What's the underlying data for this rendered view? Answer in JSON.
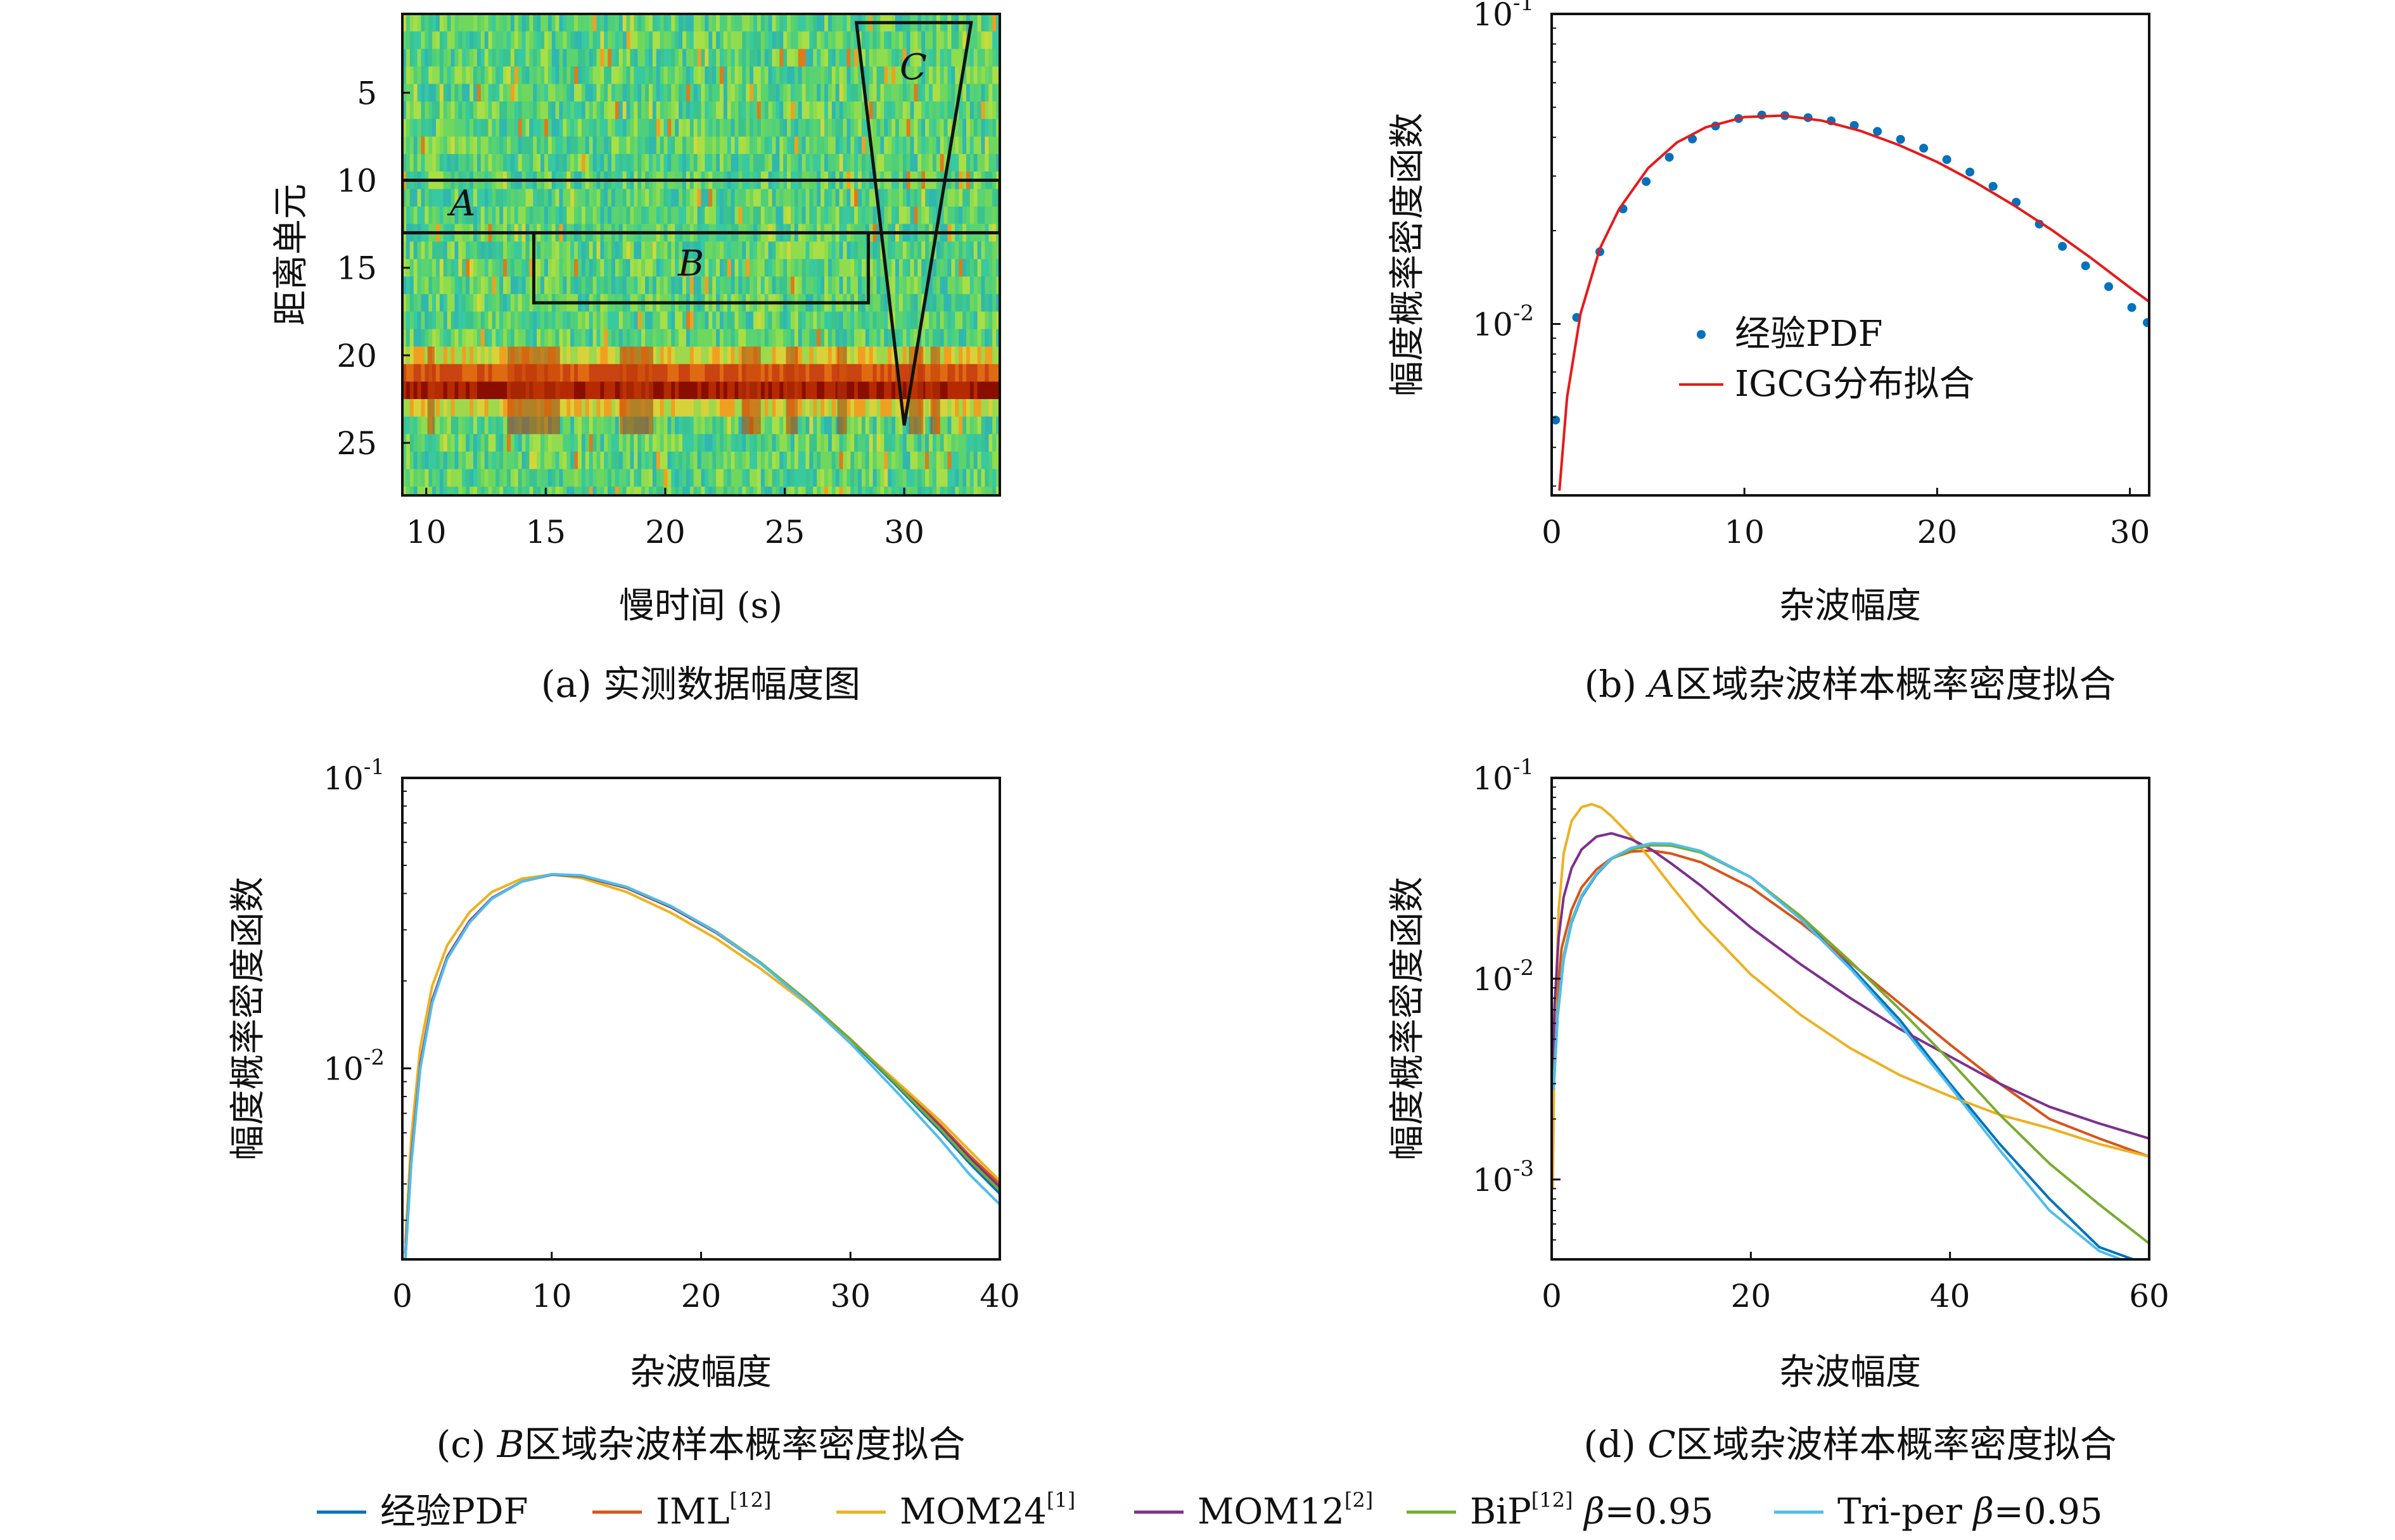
{
  "figure": {
    "captions": {
      "a": "(a) 实测数据幅度图",
      "b_prefix": "(b) ",
      "b_italic": "A",
      "b_rest": "区域杂波样本概率密度拟合",
      "c_prefix": "(c) ",
      "c_italic": "B",
      "c_rest": "区域杂波样本概率密度拟合",
      "d_prefix": "(d) ",
      "d_italic": "C",
      "d_rest": "区域杂波样本概率密度拟合"
    },
    "bottom_legend": [
      {
        "label": "经验PDF",
        "sup": "",
        "suffix": "",
        "color": "#0072BD"
      },
      {
        "label": "IML",
        "sup": "[12]",
        "suffix": "",
        "color": "#D95319"
      },
      {
        "label": "MOM24",
        "sup": "[1]",
        "suffix": "",
        "color": "#EDB120"
      },
      {
        "label": "MOM12",
        "sup": "[2]",
        "suffix": "",
        "color": "#7E2F8E"
      },
      {
        "label": "BiP",
        "sup": "[12]",
        "suffix": " β=0.95",
        "color": "#77AC30"
      },
      {
        "label": "Tri-per",
        "sup": "",
        "suffix": " β=0.95",
        "color": "#4DBEEE"
      }
    ]
  },
  "chart_data": [
    {
      "id": "a",
      "type": "heatmap",
      "xlabel": "慢时间 (s)",
      "ylabel": "距离单元",
      "xlim": [
        9,
        34
      ],
      "ylim": [
        0.5,
        28
      ],
      "xticks": [
        "10",
        "15",
        "20",
        "25",
        "30"
      ],
      "yticks": [
        "5",
        "10",
        "15",
        "20",
        "25"
      ],
      "regions": [
        {
          "name": "A",
          "shape": "rect",
          "x": [
            9,
            34
          ],
          "y": [
            10,
            13
          ]
        },
        {
          "name": "B",
          "shape": "rect",
          "x": [
            14.5,
            28.5
          ],
          "y": [
            13,
            17
          ]
        },
        {
          "name": "C",
          "shape": "triangle",
          "vertices": [
            [
              28,
              1
            ],
            [
              32.8,
              1
            ],
            [
              30,
              24
            ]
          ]
        }
      ],
      "strong_band_rows": [
        21,
        22
      ]
    },
    {
      "id": "b",
      "type": "line",
      "xlabel": "杂波幅度",
      "ylabel": "幅度概率密度函数",
      "xlim": [
        0,
        31
      ],
      "ylim": [
        0.0028,
        0.1
      ],
      "yscale": "log",
      "xticks": [
        "0",
        "10",
        "20",
        "30"
      ],
      "yticks": [
        {
          "base": "10",
          "exp": "-1"
        },
        {
          "base": "10",
          "exp": "-2"
        }
      ],
      "legend": {
        "position": "center",
        "entries": [
          "经验PDF",
          "IGCG分布拟合"
        ]
      },
      "series": [
        {
          "name": "经验PDF",
          "style": "points",
          "color": "#0072BD",
          "x": [
            0.2,
            1.3,
            2.5,
            3.7,
            4.9,
            6.1,
            7.3,
            8.5,
            9.7,
            10.9,
            12.1,
            13.3,
            14.5,
            15.7,
            16.9,
            18.1,
            19.3,
            20.5,
            21.7,
            22.9,
            24.1,
            25.3,
            26.5,
            27.7,
            28.9,
            30.1,
            30.9
          ],
          "y": [
            0.0049,
            0.0105,
            0.0171,
            0.0235,
            0.0288,
            0.0345,
            0.0395,
            0.0435,
            0.046,
            0.0472,
            0.047,
            0.0463,
            0.0452,
            0.0437,
            0.0418,
            0.0394,
            0.0369,
            0.0339,
            0.0309,
            0.0278,
            0.0247,
            0.021,
            0.0178,
            0.0154,
            0.0132,
            0.0113,
            0.0101
          ]
        },
        {
          "name": "IGCG分布拟合",
          "style": "line",
          "color": "#E8191B",
          "x": [
            0.4,
            0.8,
            1.5,
            2.5,
            3.5,
            5,
            6.5,
            8,
            10,
            12,
            14,
            16,
            18,
            20,
            22,
            24,
            26,
            28,
            30,
            31
          ],
          "y": [
            0.0029,
            0.0058,
            0.0108,
            0.0175,
            0.0235,
            0.0318,
            0.0385,
            0.0431,
            0.0465,
            0.047,
            0.0453,
            0.042,
            0.0378,
            0.0333,
            0.0286,
            0.0241,
            0.02,
            0.0163,
            0.0131,
            0.0118
          ]
        }
      ]
    },
    {
      "id": "c",
      "type": "line",
      "xlabel": "杂波幅度",
      "ylabel": "幅度概率密度函数",
      "xlim": [
        0,
        40
      ],
      "ylim": [
        0.0022,
        0.1
      ],
      "yscale": "log",
      "xticks": [
        "0",
        "10",
        "20",
        "30",
        "40"
      ],
      "yticks": [
        {
          "base": "10",
          "exp": "-1"
        },
        {
          "base": "10",
          "exp": "-2"
        }
      ],
      "series": [
        {
          "name": "经验PDF",
          "color": "#0072BD",
          "x": [
            0.2,
            0.6,
            1.2,
            2,
            3,
            4.5,
            6,
            8,
            10,
            12,
            15,
            18,
            21,
            24,
            27,
            30,
            33,
            36,
            38,
            40
          ],
          "y": [
            0.0022,
            0.0048,
            0.0102,
            0.017,
            0.024,
            0.032,
            0.0385,
            0.044,
            0.0465,
            0.046,
            0.042,
            0.036,
            0.0295,
            0.023,
            0.0172,
            0.0125,
            0.0088,
            0.0061,
            0.0047,
            0.0037
          ]
        },
        {
          "name": "IML",
          "color": "#D95319",
          "x": [
            0.2,
            0.6,
            1.2,
            2,
            3,
            4.5,
            6,
            8,
            10,
            12,
            15,
            18,
            21,
            24,
            27,
            30,
            33,
            36,
            38,
            40
          ],
          "y": [
            0.0023,
            0.005,
            0.0104,
            0.0172,
            0.0242,
            0.0322,
            0.0386,
            0.044,
            0.0464,
            0.0458,
            0.0418,
            0.0358,
            0.0293,
            0.0229,
            0.0172,
            0.0126,
            0.009,
            0.0064,
            0.005,
            0.004
          ]
        },
        {
          "name": "MOM24",
          "color": "#EDB120",
          "x": [
            0.2,
            0.6,
            1.2,
            2,
            3,
            4.5,
            6,
            8,
            10,
            12,
            15,
            18,
            21,
            24,
            27,
            30,
            33,
            36,
            38,
            40
          ],
          "y": [
            0.0025,
            0.0058,
            0.0118,
            0.0192,
            0.0265,
            0.0345,
            0.0405,
            0.045,
            0.0465,
            0.0452,
            0.0405,
            0.0343,
            0.028,
            0.022,
            0.0168,
            0.0125,
            0.0091,
            0.0066,
            0.0052,
            0.0041
          ]
        },
        {
          "name": "MOM12",
          "color": "#7E2F8E",
          "x": [
            0.2,
            0.6,
            1.2,
            2,
            3,
            4.5,
            6,
            8,
            10,
            12,
            15,
            18,
            21,
            24,
            27,
            30,
            33,
            36,
            38,
            40
          ],
          "y": [
            0.0023,
            0.0049,
            0.0103,
            0.0171,
            0.0241,
            0.0321,
            0.0386,
            0.044,
            0.0465,
            0.0459,
            0.0419,
            0.0359,
            0.0294,
            0.023,
            0.0172,
            0.0126,
            0.0089,
            0.0063,
            0.0049,
            0.0039
          ]
        },
        {
          "name": "BiP",
          "color": "#77AC30",
          "x": [
            0.2,
            0.6,
            1.2,
            2,
            3,
            4.5,
            6,
            8,
            10,
            12,
            15,
            18,
            21,
            24,
            27,
            30,
            33,
            36,
            38,
            40
          ],
          "y": [
            0.0022,
            0.0047,
            0.01,
            0.0168,
            0.0238,
            0.0318,
            0.0384,
            0.044,
            0.0466,
            0.0461,
            0.0421,
            0.0361,
            0.0296,
            0.0231,
            0.0173,
            0.0126,
            0.0089,
            0.0062,
            0.0048,
            0.0038
          ]
        },
        {
          "name": "Tri-per",
          "color": "#4DBEEE",
          "x": [
            0.2,
            0.6,
            1.2,
            2,
            3,
            4.5,
            6,
            8,
            10,
            12,
            15,
            18,
            21,
            24,
            27,
            30,
            33,
            36,
            38,
            40
          ],
          "y": [
            0.0022,
            0.0047,
            0.01,
            0.0168,
            0.0238,
            0.0318,
            0.0384,
            0.044,
            0.0466,
            0.0462,
            0.0422,
            0.0362,
            0.0295,
            0.0229,
            0.017,
            0.0122,
            0.0084,
            0.0057,
            0.0043,
            0.0034
          ]
        }
      ]
    },
    {
      "id": "d",
      "type": "line",
      "xlabel": "杂波幅度",
      "ylabel": "幅度概率密度函数",
      "xlim": [
        0,
        60
      ],
      "ylim": [
        0.0004,
        0.1
      ],
      "yscale": "log",
      "xticks": [
        "0",
        "20",
        "40",
        "60"
      ],
      "yticks": [
        {
          "base": "10",
          "exp": "-1"
        },
        {
          "base": "10",
          "exp": "-2"
        },
        {
          "base": "10",
          "exp": "-3"
        }
      ],
      "series": [
        {
          "name": "经验PDF",
          "color": "#0072BD",
          "x": [
            0.2,
            0.6,
            1.2,
            2,
            3,
            4.5,
            6,
            8,
            10,
            12,
            15,
            20,
            25,
            30,
            35,
            40,
            45,
            50,
            55,
            59
          ],
          "y": [
            0.0028,
            0.0065,
            0.0125,
            0.019,
            0.0255,
            0.033,
            0.0395,
            0.0445,
            0.047,
            0.0468,
            0.043,
            0.032,
            0.02,
            0.0115,
            0.0062,
            0.003,
            0.0015,
            0.0008,
            0.00046,
            0.00039
          ]
        },
        {
          "name": "IML",
          "color": "#D95319",
          "x": [
            0.2,
            0.5,
            1,
            2,
            3,
            4.5,
            6,
            8,
            10,
            12,
            15,
            20,
            25,
            30,
            35,
            40,
            45,
            50,
            55,
            60
          ],
          "y": [
            0.0038,
            0.008,
            0.0142,
            0.022,
            0.0285,
            0.035,
            0.0398,
            0.043,
            0.0435,
            0.042,
            0.038,
            0.0285,
            0.019,
            0.012,
            0.0075,
            0.0047,
            0.003,
            0.002,
            0.0016,
            0.0013
          ]
        },
        {
          "name": "MOM24",
          "color": "#EDB120",
          "x": [
            0.1,
            0.3,
            0.7,
            1.2,
            2,
            3,
            4,
            5,
            6,
            8,
            10,
            12,
            15,
            20,
            25,
            30,
            35,
            40,
            45,
            50,
            55,
            60
          ],
          "y": [
            0.0009,
            0.0055,
            0.022,
            0.042,
            0.061,
            0.0715,
            0.074,
            0.071,
            0.0645,
            0.051,
            0.039,
            0.029,
            0.019,
            0.0105,
            0.0066,
            0.0045,
            0.0033,
            0.0026,
            0.0021,
            0.0018,
            0.0015,
            0.0013
          ]
        },
        {
          "name": "MOM12",
          "color": "#7E2F8E",
          "x": [
            0.1,
            0.3,
            0.7,
            1.2,
            2,
            3,
            4.5,
            6,
            8,
            10,
            12,
            15,
            20,
            25,
            30,
            35,
            40,
            45,
            50,
            55,
            60
          ],
          "y": [
            0.0035,
            0.0075,
            0.016,
            0.0255,
            0.0355,
            0.044,
            0.051,
            0.053,
            0.0495,
            0.044,
            0.0375,
            0.029,
            0.018,
            0.0118,
            0.008,
            0.0056,
            0.0041,
            0.003,
            0.0023,
            0.0019,
            0.0016
          ]
        },
        {
          "name": "BiP",
          "color": "#77AC30",
          "x": [
            0.2,
            0.6,
            1.2,
            2,
            3,
            4.5,
            6,
            8,
            10,
            12,
            15,
            20,
            25,
            30,
            35,
            40,
            45,
            50,
            55,
            60
          ],
          "y": [
            0.003,
            0.007,
            0.013,
            0.0195,
            0.026,
            0.0333,
            0.0395,
            0.044,
            0.0462,
            0.046,
            0.0425,
            0.032,
            0.0205,
            0.0122,
            0.007,
            0.0039,
            0.0021,
            0.0012,
            0.00075,
            0.00048
          ]
        },
        {
          "name": "Tri-per",
          "color": "#4DBEEE",
          "x": [
            0.2,
            0.6,
            1.2,
            2,
            3,
            4.5,
            6,
            8,
            10,
            12,
            15,
            20,
            25,
            30,
            35,
            40,
            45,
            50,
            55,
            59
          ],
          "y": [
            0.0028,
            0.0066,
            0.0126,
            0.0192,
            0.0258,
            0.0333,
            0.0398,
            0.0448,
            0.0472,
            0.047,
            0.0432,
            0.032,
            0.0198,
            0.0112,
            0.0059,
            0.0029,
            0.0014,
            0.0007,
            0.00044,
            0.00037
          ]
        }
      ]
    }
  ]
}
